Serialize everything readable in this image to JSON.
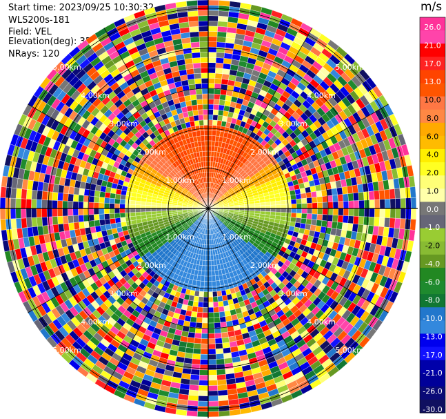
{
  "header": {
    "start_time": "Start time: 2023/09/25 10:30:32",
    "instrument": "WLS200s-181",
    "field": "Field: VEL",
    "elevation": "Elevation(deg): 35.30",
    "nrays": "NRays: 120"
  },
  "chart_data": {
    "type": "heatmap",
    "subtype": "ppi-polar",
    "title": "",
    "field": "VEL",
    "units": "m/s",
    "elevation_deg": 35.3,
    "n_rays": 120,
    "range_ring_labels": [
      "1.00km",
      "2.00km",
      "3.00km",
      "4.00km",
      "5.00km"
    ],
    "grid": true,
    "colorbar": {
      "placement": "right",
      "unit_label": "m/s",
      "tick_labels": [
        "26.0",
        "21.0",
        "17.0",
        "13.0",
        "10.0",
        "8.0",
        "6.0",
        "4.0",
        "2.0",
        "1.0",
        "0.0",
        "-1.0",
        "-2.0",
        "-4.0",
        "-6.0",
        "-8.0",
        "-10.0",
        "-13.0",
        "-17.0",
        "-21.0",
        "-26.0",
        "-30.0"
      ],
      "colors": [
        "#ff3399",
        "#ff44aa",
        "#ff0000",
        "#ff2222",
        "#ff4400",
        "#ff5500",
        "#ff7744",
        "#ff8844",
        "#ffaa00",
        "#ffbb00",
        "#ffee00",
        "#ffff22",
        "#ffff77",
        "#ffffaa",
        "#777777",
        "#666677",
        "#99cc33",
        "#88bb33",
        "#669922",
        "#228822",
        "#1e8a2e",
        "#117733",
        "#2277cc",
        "#3388dd",
        "#0000ee",
        "#1111ff",
        "#0000aa",
        "#000099",
        "#0a0a77",
        "#101060"
      ]
    },
    "pattern_description_free": "clean signal within ~2 km: north orange/red (positive), south green/blue (negative), noise beyond",
    "clean_range_km": 2.0
  }
}
